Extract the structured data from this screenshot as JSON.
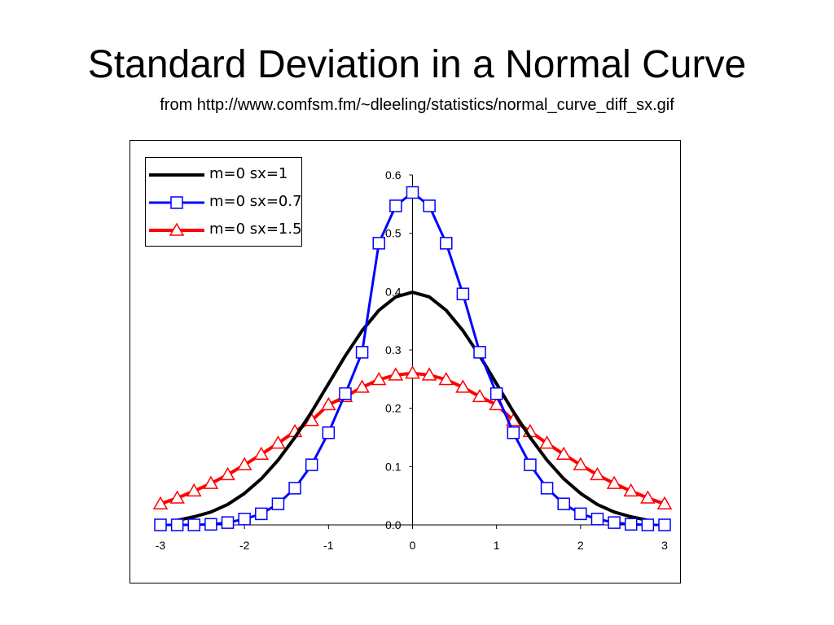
{
  "slide": {
    "title": "Standard Deviation in a Normal Curve",
    "subtitle": "from http://www.comfsm.fm/~dleeling/statistics/normal_curve_diff_sx.gif"
  },
  "chart_data": {
    "type": "line",
    "xlim": [
      -3,
      3
    ],
    "ylim": [
      0,
      0.6
    ],
    "x_ticks": [
      -3,
      -2,
      -1,
      0,
      1,
      2,
      3
    ],
    "x_tick_labels": [
      "-3",
      "-2",
      "-1",
      "0",
      "1",
      "2",
      "3"
    ],
    "y_ticks": [
      0,
      0.1,
      0.2,
      0.3,
      0.4,
      0.5,
      0.6
    ],
    "y_tick_labels": [
      "0.0",
      "0.1",
      "0.2",
      "0.3",
      "0.4",
      "0.5",
      "0.6"
    ],
    "legend_position": "top-left",
    "x": [
      -3.0,
      -2.8,
      -2.6,
      -2.4,
      -2.2,
      -2.0,
      -1.8,
      -1.6,
      -1.4,
      -1.2,
      -1.0,
      -0.8,
      -0.6,
      -0.4,
      -0.2,
      0.0,
      0.2,
      0.4,
      0.6,
      0.8,
      1.0,
      1.2,
      1.4,
      1.6,
      1.8,
      2.0,
      2.2,
      2.4,
      2.6,
      2.8,
      3.0
    ],
    "series": [
      {
        "name": "m=0 sx=1",
        "color": "#000000",
        "marker": "none",
        "x": [
          -2.8,
          -2.6,
          -2.4,
          -2.2,
          -2.0,
          -1.8,
          -1.6,
          -1.4,
          -1.2,
          -1.0,
          -0.8,
          -0.6,
          -0.4,
          -0.2,
          0.0,
          0.2,
          0.4,
          0.6,
          0.8,
          1.0,
          1.2,
          1.4,
          1.6,
          1.8,
          2.0,
          2.2,
          2.4,
          2.6,
          2.8
        ],
        "values": [
          0.008,
          0.014,
          0.022,
          0.035,
          0.054,
          0.079,
          0.111,
          0.15,
          0.194,
          0.242,
          0.29,
          0.333,
          0.368,
          0.391,
          0.399,
          0.391,
          0.368,
          0.333,
          0.29,
          0.242,
          0.194,
          0.15,
          0.111,
          0.079,
          0.054,
          0.035,
          0.022,
          0.014,
          0.008
        ]
      },
      {
        "name": "m=0 sx=0.7",
        "color": "#0000ff",
        "marker": "square",
        "values": [
          0.0,
          0.0,
          0.0,
          0.001,
          0.004,
          0.01,
          0.019,
          0.036,
          0.063,
          0.103,
          0.158,
          0.225,
          0.296,
          0.483,
          0.547,
          0.57,
          0.547,
          0.483,
          0.396,
          0.296,
          0.225,
          0.158,
          0.103,
          0.063,
          0.036,
          0.019,
          0.01,
          0.004,
          0.001,
          0.0,
          0.0
        ]
      },
      {
        "name": "m=0 sx=1.5",
        "color": "#ff0000",
        "marker": "triangle",
        "values": [
          0.036,
          0.046,
          0.058,
          0.071,
          0.086,
          0.103,
          0.121,
          0.14,
          0.16,
          0.179,
          0.206,
          0.22,
          0.236,
          0.249,
          0.257,
          0.26,
          0.257,
          0.249,
          0.236,
          0.22,
          0.206,
          0.179,
          0.16,
          0.14,
          0.121,
          0.103,
          0.086,
          0.071,
          0.058,
          0.046,
          0.036
        ]
      }
    ]
  }
}
